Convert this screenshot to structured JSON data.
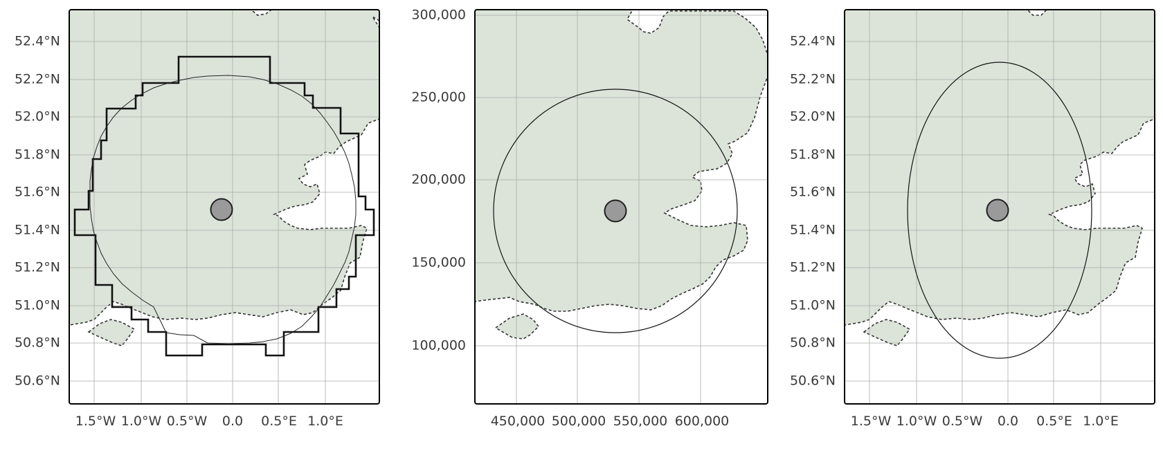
{
  "colors": {
    "land": "#dce4da",
    "coast": "#333333",
    "grid": "#a9aba7",
    "frame": "#000000",
    "dot": "#9a9a9a"
  },
  "chart_data": [
    {
      "type": "map",
      "projection": "geographic",
      "x_ticks": [
        "1.5°W",
        "1.0°W",
        "0.5°W",
        "0.0",
        "0.5°E",
        "1.0°E"
      ],
      "y_ticks": [
        "52.4°N",
        "52.2°N",
        "52.0°N",
        "51.8°N",
        "51.6°N",
        "51.4°N",
        "51.2°N",
        "51.0°N",
        "50.8°N",
        "50.6°N"
      ],
      "center_point": {
        "lon": -0.13,
        "lat": 51.51
      },
      "overlays": [
        "coarse-grid-cell-outline",
        "fine-grid-cell-outline"
      ],
      "grid": true
    },
    {
      "type": "map",
      "projection": "british-national-grid",
      "x_ticks": [
        "450,000",
        "500,000",
        "550,000",
        "600,000"
      ],
      "y_ticks": [
        "300,000",
        "250,000",
        "200,000",
        "150,000",
        "100,000"
      ],
      "center_point": {
        "x": 530000,
        "y": 180000
      },
      "overlays": [
        "circle"
      ],
      "grid": true
    },
    {
      "type": "map",
      "projection": "geographic",
      "x_ticks": [
        "1.5°W",
        "1.0°W",
        "0.5°W",
        "0.0",
        "0.5°E",
        "1.0°E"
      ],
      "y_ticks": [
        "52.4°N",
        "52.2°N",
        "52.0°N",
        "51.8°N",
        "51.6°N",
        "51.4°N",
        "51.2°N",
        "51.0°N",
        "50.8°N",
        "50.6°N"
      ],
      "center_point": {
        "lon": -0.13,
        "lat": 51.51
      },
      "overlays": [
        "ellipse"
      ],
      "grid": true
    }
  ]
}
